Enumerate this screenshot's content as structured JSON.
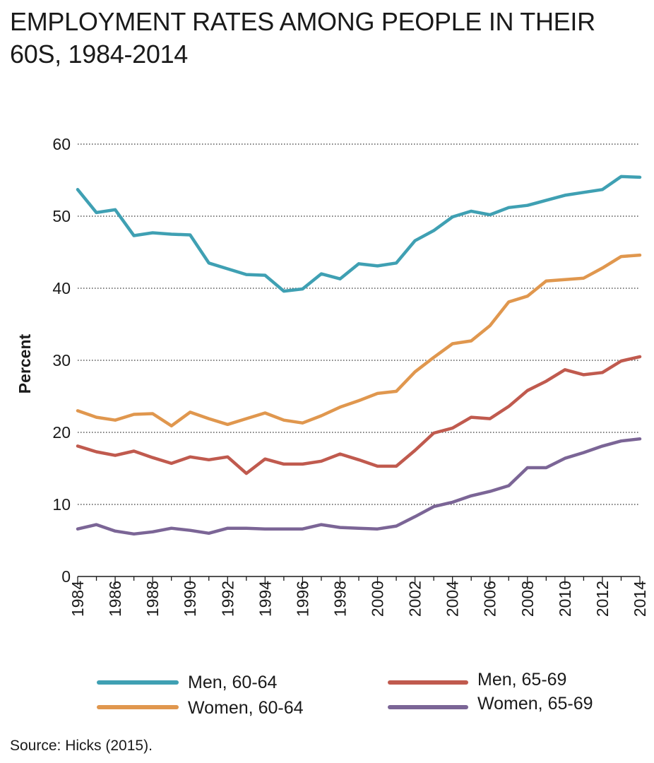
{
  "title": "EMPLOYMENT RATES AMONG PEOPLE IN THEIR 60S, 1984-2014",
  "source": "Source: Hicks (2015).",
  "chart_data": {
    "type": "line",
    "title": "EMPLOYMENT RATES AMONG PEOPLE IN THEIR 60S, 1984-2014",
    "xlabel": "",
    "ylabel": "Percent",
    "xlim": [
      1984,
      2014
    ],
    "ylim": [
      0,
      60
    ],
    "yticks": [
      0,
      10,
      20,
      30,
      40,
      50,
      60
    ],
    "xticks": [
      1984,
      1986,
      1988,
      1990,
      1992,
      1994,
      1996,
      1998,
      2000,
      2002,
      2004,
      2006,
      2008,
      2010,
      2012,
      2014
    ],
    "grid": "horizontal dotted",
    "legend_position": "bottom",
    "x": [
      1984,
      1985,
      1986,
      1987,
      1988,
      1989,
      1990,
      1991,
      1992,
      1993,
      1994,
      1995,
      1996,
      1997,
      1998,
      1999,
      2000,
      2001,
      2002,
      2003,
      2004,
      2005,
      2006,
      2007,
      2008,
      2009,
      2010,
      2011,
      2012,
      2013,
      2014
    ],
    "series": [
      {
        "name": "Men, 60-64",
        "color": "#3fa0b3",
        "values": [
          53.7,
          50.5,
          50.9,
          47.3,
          47.7,
          47.5,
          47.4,
          43.5,
          42.7,
          41.9,
          41.8,
          39.6,
          39.9,
          42.0,
          41.3,
          43.4,
          43.1,
          43.5,
          46.6,
          48.0,
          49.9,
          50.7,
          50.2,
          51.2,
          51.5,
          52.2,
          52.9,
          53.3,
          53.7,
          55.5,
          55.4
        ]
      },
      {
        "name": "Women, 60-64",
        "color": "#e0974e",
        "values": [
          23.0,
          22.1,
          21.7,
          22.5,
          22.6,
          20.9,
          22.8,
          21.9,
          21.1,
          21.9,
          22.7,
          21.7,
          21.3,
          22.3,
          23.5,
          24.4,
          25.4,
          25.7,
          28.4,
          30.4,
          32.3,
          32.7,
          34.8,
          38.1,
          38.9,
          41.0,
          41.2,
          41.4,
          42.8,
          44.4,
          44.6
        ]
      },
      {
        "name": "Men, 65-69",
        "color": "#c05a4e",
        "values": [
          18.1,
          17.3,
          16.8,
          17.4,
          16.5,
          15.7,
          16.6,
          16.2,
          16.6,
          14.3,
          16.3,
          15.6,
          15.6,
          16.0,
          17.0,
          16.2,
          15.3,
          15.3,
          17.5,
          19.9,
          20.6,
          22.1,
          21.9,
          23.6,
          25.8,
          27.1,
          28.7,
          28.0,
          28.3,
          29.9,
          30.5
        ]
      },
      {
        "name": "Women, 65-69",
        "color": "#7b6596",
        "values": [
          6.6,
          7.2,
          6.3,
          5.9,
          6.2,
          6.7,
          6.4,
          6.0,
          6.7,
          6.7,
          6.6,
          6.6,
          6.6,
          7.2,
          6.8,
          6.7,
          6.6,
          7.0,
          8.3,
          9.7,
          10.3,
          11.2,
          11.8,
          12.6,
          15.1,
          15.1,
          16.4,
          17.2,
          18.1,
          18.8,
          19.1
        ]
      }
    ]
  },
  "legend": [
    {
      "label": "Men, 60-64",
      "color": "#3fa0b3"
    },
    {
      "label": "Men, 65-69",
      "color": "#c05a4e"
    },
    {
      "label": "Women, 60-64",
      "color": "#e0974e"
    },
    {
      "label": "Women, 65-69",
      "color": "#7b6596"
    }
  ]
}
